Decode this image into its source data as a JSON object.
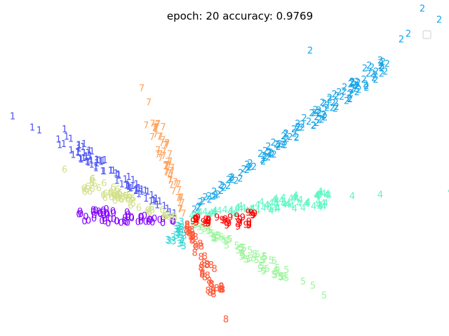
{
  "chart_data": {
    "type": "scatter",
    "title": "epoch: 20   accuracy: 0.9769",
    "grid": false,
    "axes_visible": false,
    "legend": {
      "placement": "top-right",
      "entries": []
    },
    "point_marker": "digit label of the class",
    "classes": [
      {
        "label": "0",
        "color": "#8000ff",
        "ray": {
          "from": [
            -0.05,
            -0.02
          ],
          "to": [
            -0.75,
            0.03
          ]
        },
        "outliers": [
          [
            -0.74,
            0.05
          ]
        ]
      },
      {
        "label": "1",
        "color": "#4a52f5",
        "ray": {
          "from": [
            -0.05,
            0.02
          ],
          "to": [
            -0.9,
            0.6
          ]
        },
        "outliers": [
          [
            -1.22,
            0.73
          ],
          [
            -1.08,
            0.65
          ],
          [
            -1.03,
            0.63
          ]
        ]
      },
      {
        "label": "2",
        "color": "#14a4e8",
        "ray": {
          "from": [
            0.05,
            0.05
          ],
          "to": [
            1.45,
            1.12
          ]
        },
        "outliers": [
          [
            1.7,
            1.5
          ],
          [
            1.82,
            1.42
          ],
          [
            1.6,
            1.32
          ],
          [
            1.55,
            1.28
          ],
          [
            0.9,
            1.2
          ]
        ]
      },
      {
        "label": "3",
        "color": "#2dd4d4",
        "ray": {
          "from": [
            -0.01,
            -0.02
          ],
          "to": [
            -0.06,
            -0.18
          ]
        },
        "outliers": []
      },
      {
        "label": "4",
        "color": "#5cf7c2",
        "ray": {
          "from": [
            0.05,
            0.02
          ],
          "to": [
            1.05,
            0.15
          ]
        },
        "outliers": [
          [
            1.9,
            0.2
          ],
          [
            1.4,
            0.17
          ],
          [
            1.2,
            0.16
          ]
        ]
      },
      {
        "label": "5",
        "color": "#9af59a",
        "ray": {
          "from": [
            0.05,
            -0.02
          ],
          "to": [
            0.75,
            -0.42
          ]
        },
        "outliers": [
          [
            1.0,
            -0.55
          ],
          [
            0.92,
            -0.48
          ],
          [
            0.85,
            -0.45
          ]
        ]
      },
      {
        "label": "6",
        "color": "#d1e08a",
        "ray": {
          "from": [
            -0.05,
            0.0
          ],
          "to": [
            -0.7,
            0.25
          ]
        },
        "outliers": [
          [
            -0.85,
            0.35
          ]
        ]
      },
      {
        "label": "7",
        "color": "#ffa25c",
        "ray": {
          "from": [
            0.0,
            0.03
          ],
          "to": [
            -0.22,
            0.7
          ]
        },
        "outliers": [
          [
            -0.3,
            0.93
          ],
          [
            -0.25,
            0.83
          ]
        ]
      },
      {
        "label": "8",
        "color": "#ff5533",
        "ray": {
          "from": [
            0.01,
            -0.02
          ],
          "to": [
            0.25,
            -0.54
          ]
        },
        "outliers": [
          [
            0.3,
            -0.72
          ]
        ]
      },
      {
        "label": "9",
        "color": "#ff0000",
        "ray": {
          "from": [
            0.05,
            -0.01
          ],
          "to": [
            0.53,
            -0.01
          ]
        },
        "outliers": []
      }
    ]
  }
}
